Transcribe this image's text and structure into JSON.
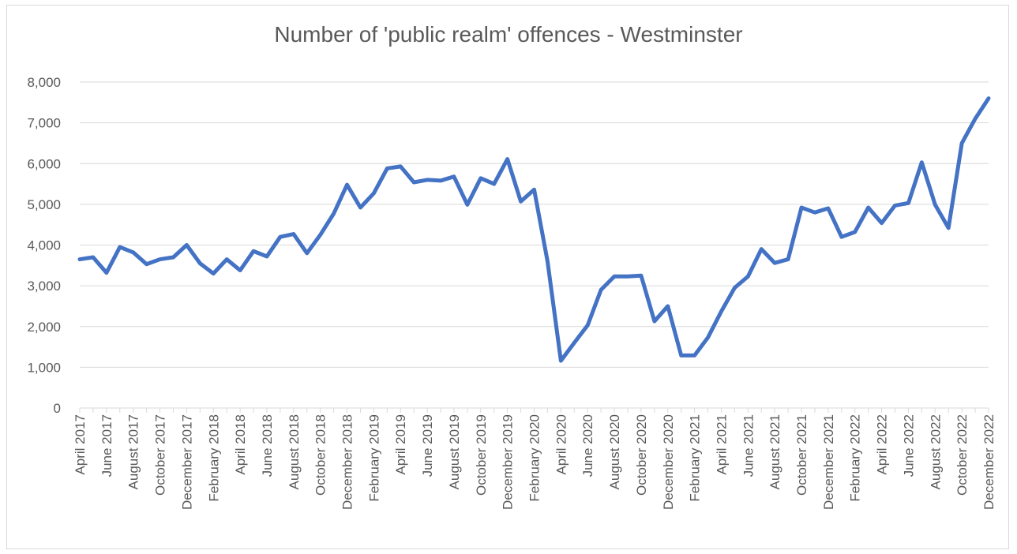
{
  "chart_data": {
    "type": "line",
    "title": "Number of 'public realm' offences - Westminster",
    "xlabel": "",
    "ylabel": "",
    "ylim": [
      0,
      8000
    ],
    "y_ticks": [
      0,
      1000,
      2000,
      3000,
      4000,
      5000,
      6000,
      7000,
      8000
    ],
    "y_tick_labels": [
      "0",
      "1,000",
      "2,000",
      "3,000",
      "4,000",
      "5,000",
      "6,000",
      "7,000",
      "8,000"
    ],
    "grid": true,
    "legend": "none",
    "line_color": "#4472c4",
    "x_tick_labels": [
      "April 2017",
      "June 2017",
      "August 2017",
      "October 2017",
      "December 2017",
      "February 2018",
      "April 2018",
      "June 2018",
      "August 2018",
      "October 2018",
      "December 2018",
      "February 2019",
      "April 2019",
      "June 2019",
      "August 2019",
      "October 2019",
      "December 2019",
      "February 2020",
      "April 2020",
      "June 2020",
      "August 2020",
      "October 2020",
      "December 2020",
      "February 2021",
      "April 2021",
      "June 2021",
      "August 2021",
      "October 2021",
      "December 2021",
      "February 2022",
      "April 2022",
      "June 2022",
      "August 2022",
      "October 2022",
      "December 2022"
    ],
    "x": [
      "2017-04",
      "2017-05",
      "2017-06",
      "2017-07",
      "2017-08",
      "2017-09",
      "2017-10",
      "2017-11",
      "2017-12",
      "2018-01",
      "2018-02",
      "2018-03",
      "2018-04",
      "2018-05",
      "2018-06",
      "2018-07",
      "2018-08",
      "2018-09",
      "2018-10",
      "2018-11",
      "2018-12",
      "2019-01",
      "2019-02",
      "2019-03",
      "2019-04",
      "2019-05",
      "2019-06",
      "2019-07",
      "2019-08",
      "2019-09",
      "2019-10",
      "2019-11",
      "2019-12",
      "2020-01",
      "2020-02",
      "2020-03",
      "2020-04",
      "2020-05",
      "2020-06",
      "2020-07",
      "2020-08",
      "2020-09",
      "2020-10",
      "2020-11",
      "2020-12",
      "2021-01",
      "2021-02",
      "2021-03",
      "2021-04",
      "2021-05",
      "2021-06",
      "2021-07",
      "2021-08",
      "2021-09",
      "2021-10",
      "2021-11",
      "2021-12",
      "2022-01",
      "2022-02",
      "2022-03",
      "2022-04",
      "2022-05",
      "2022-06",
      "2022-07",
      "2022-08",
      "2022-09",
      "2022-10",
      "2022-11",
      "2022-12"
    ],
    "series": [
      {
        "values": [
          3650,
          3700,
          3320,
          3950,
          3820,
          3530,
          3650,
          3700,
          4000,
          3550,
          3300,
          3650,
          3380,
          3850,
          3720,
          4200,
          4270,
          3800,
          4250,
          4770,
          5480,
          4920,
          5270,
          5880,
          5930,
          5540,
          5600,
          5580,
          5680,
          4990,
          5640,
          5500,
          6110,
          5070,
          5360,
          3600,
          1160,
          1600,
          2030,
          2900,
          3230,
          3230,
          3250,
          2130,
          2500,
          1290,
          1290,
          1730,
          2370,
          2950,
          3230,
          3900,
          3560,
          3650,
          4920,
          4800,
          4900,
          4200,
          4320,
          4920,
          4540,
          4970,
          5030,
          6030,
          4990,
          4420,
          6500,
          7100,
          7600
        ]
      }
    ]
  }
}
